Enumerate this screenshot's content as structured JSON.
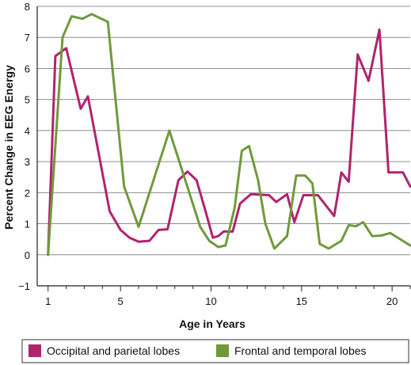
{
  "chart_data": {
    "type": "line",
    "title": "",
    "xlabel": "Age in Years",
    "ylabel": "Percent Change in EEG Energy",
    "xlim": [
      0.4,
      21
    ],
    "ylim": [
      -1,
      8
    ],
    "x_ticks": [
      1,
      5,
      10,
      15,
      20
    ],
    "y_ticks": [
      -1,
      0,
      1,
      2,
      3,
      4,
      5,
      6,
      7,
      8
    ],
    "grid": "horizontal",
    "legend_position": "bottom",
    "series": [
      {
        "name": "Occipital and parietal lobes",
        "color": "#b0246e",
        "points": [
          [
            1.0,
            0.0
          ],
          [
            1.4,
            6.4
          ],
          [
            2.0,
            6.65
          ],
          [
            2.8,
            4.7
          ],
          [
            3.2,
            5.1
          ],
          [
            4.4,
            1.4
          ],
          [
            5.0,
            0.8
          ],
          [
            5.5,
            0.55
          ],
          [
            6.0,
            0.42
          ],
          [
            6.6,
            0.45
          ],
          [
            7.1,
            0.8
          ],
          [
            7.6,
            0.82
          ],
          [
            8.2,
            2.4
          ],
          [
            8.7,
            2.68
          ],
          [
            9.2,
            2.4
          ],
          [
            9.7,
            1.4
          ],
          [
            10.1,
            0.55
          ],
          [
            10.4,
            0.6
          ],
          [
            10.7,
            0.75
          ],
          [
            11.2,
            0.75
          ],
          [
            11.6,
            1.65
          ],
          [
            12.2,
            1.95
          ],
          [
            13.2,
            1.92
          ],
          [
            13.6,
            1.7
          ],
          [
            14.2,
            1.95
          ],
          [
            14.6,
            1.05
          ],
          [
            15.1,
            1.92
          ],
          [
            15.9,
            1.92
          ],
          [
            16.8,
            1.25
          ],
          [
            17.2,
            2.65
          ],
          [
            17.6,
            2.35
          ],
          [
            18.1,
            6.45
          ],
          [
            18.7,
            5.6
          ],
          [
            19.3,
            7.25
          ],
          [
            19.8,
            2.65
          ],
          [
            20.6,
            2.65
          ],
          [
            21.0,
            2.2
          ]
        ]
      },
      {
        "name": "Frontal and temporal lobes",
        "color": "#6f9a3c",
        "points": [
          [
            1.0,
            0.0
          ],
          [
            1.8,
            7.0
          ],
          [
            2.3,
            7.68
          ],
          [
            2.9,
            7.6
          ],
          [
            3.4,
            7.75
          ],
          [
            4.3,
            7.5
          ],
          [
            5.2,
            2.2
          ],
          [
            6.0,
            0.9
          ],
          [
            7.7,
            4.0
          ],
          [
            9.4,
            0.9
          ],
          [
            9.9,
            0.45
          ],
          [
            10.4,
            0.25
          ],
          [
            10.8,
            0.3
          ],
          [
            11.3,
            1.5
          ],
          [
            11.7,
            3.35
          ],
          [
            12.1,
            3.5
          ],
          [
            12.6,
            2.4
          ],
          [
            13.0,
            1.0
          ],
          [
            13.5,
            0.2
          ],
          [
            14.2,
            0.6
          ],
          [
            14.7,
            2.55
          ],
          [
            15.2,
            2.55
          ],
          [
            15.6,
            2.3
          ],
          [
            16.0,
            0.35
          ],
          [
            16.5,
            0.2
          ],
          [
            17.2,
            0.45
          ],
          [
            17.6,
            0.95
          ],
          [
            18.0,
            0.92
          ],
          [
            18.4,
            1.05
          ],
          [
            18.9,
            0.6
          ],
          [
            19.4,
            0.62
          ],
          [
            19.9,
            0.7
          ],
          [
            21.0,
            0.3
          ]
        ]
      }
    ]
  }
}
